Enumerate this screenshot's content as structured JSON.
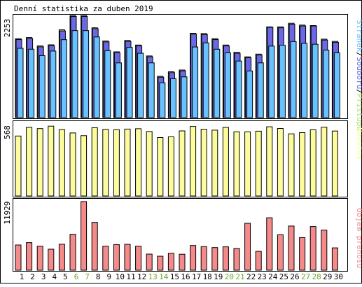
{
  "title": "Denní statistika za duben 2019",
  "colors": {
    "hits": "#b4e06c",
    "files": "#6b68e6",
    "pages": "#68c2ff",
    "visits": "#fdfc9c",
    "kbytes": "#f48a8a",
    "weekend_label": "#69a924",
    "weekday_label": "#000000"
  },
  "chart_data": [
    {
      "type": "bar",
      "title": "Denní statistika za duben 2019",
      "ylabel": "Stránek/Souborů/Přístupů",
      "ylabel_parts": [
        "Stránek",
        "/",
        "Souborů",
        "/",
        "Přístupů"
      ],
      "ymax_label": "2253",
      "ylim": [
        0,
        2253
      ],
      "grid": false,
      "categories": [
        "1",
        "2",
        "3",
        "4",
        "5",
        "6",
        "7",
        "8",
        "9",
        "10",
        "11",
        "12",
        "13",
        "14",
        "15",
        "16",
        "17",
        "18",
        "19",
        "20",
        "21",
        "22",
        "23",
        "24",
        "25",
        "26",
        "27",
        "28",
        "29",
        "30"
      ],
      "weekend": [
        6,
        7,
        13,
        14,
        20,
        21,
        27,
        28
      ],
      "series": [
        {
          "name": "Přístupů",
          "values": [
            1740,
            1765,
            1580,
            1605,
            1935,
            2250,
            2250,
            1980,
            1690,
            1450,
            1700,
            1600,
            1360,
            910,
            1010,
            1050,
            1860,
            1855,
            1740,
            1600,
            1440,
            1340,
            1400,
            2000,
            2000,
            2080,
            2040,
            2030,
            1730,
            1680
          ]
        },
        {
          "name": "Souborů",
          "values": [
            1720,
            1745,
            1560,
            1585,
            1910,
            2230,
            2230,
            1960,
            1670,
            1430,
            1680,
            1580,
            1340,
            890,
            990,
            1030,
            1840,
            1830,
            1720,
            1580,
            1420,
            1320,
            1380,
            1990,
            1980,
            2060,
            2020,
            2020,
            1710,
            1660
          ]
        },
        {
          "name": "Stránek",
          "values": [
            1620,
            1600,
            1460,
            1560,
            1810,
            2010,
            2010,
            1870,
            1570,
            1300,
            1640,
            1510,
            1300,
            860,
            950,
            990,
            1650,
            1740,
            1600,
            1520,
            1340,
            1120,
            1300,
            1670,
            1690,
            1770,
            1730,
            1710,
            1580,
            1520
          ]
        }
      ]
    },
    {
      "type": "bar",
      "ylabel": "Návštěv",
      "ymax_label": "568",
      "ylim": [
        0,
        568
      ],
      "grid": false,
      "categories": [
        "1",
        "2",
        "3",
        "4",
        "5",
        "6",
        "7",
        "8",
        "9",
        "10",
        "11",
        "12",
        "13",
        "14",
        "15",
        "16",
        "17",
        "18",
        "19",
        "20",
        "21",
        "22",
        "23",
        "24",
        "25",
        "26",
        "27",
        "28",
        "29",
        "30"
      ],
      "series": [
        {
          "name": "Návštěv",
          "values": [
            468,
            535,
            526,
            545,
            518,
            492,
            471,
            533,
            520,
            517,
            522,
            525,
            503,
            456,
            462,
            508,
            543,
            521,
            514,
            535,
            501,
            501,
            506,
            540,
            527,
            485,
            494,
            517,
            537,
            507
          ]
        }
      ]
    },
    {
      "type": "bar",
      "ylabel": "Objem přenosu",
      "ymax_label": "11929",
      "ylim": [
        0,
        11929
      ],
      "grid": false,
      "categories": [
        "1",
        "2",
        "3",
        "4",
        "5",
        "6",
        "7",
        "8",
        "9",
        "10",
        "11",
        "12",
        "13",
        "14",
        "15",
        "16",
        "17",
        "18",
        "19",
        "20",
        "21",
        "22",
        "23",
        "24",
        "25",
        "26",
        "27",
        "28",
        "29",
        "30"
      ],
      "series": [
        {
          "name": "Objem přenosu",
          "values": [
            4380,
            4800,
            4180,
            3650,
            4520,
            6240,
            11929,
            8310,
            4180,
            4460,
            4500,
            4180,
            2800,
            2440,
            2930,
            2780,
            4300,
            4100,
            3930,
            4070,
            3780,
            8150,
            3280,
            9120,
            6170,
            7680,
            5670,
            7590,
            6960,
            3880
          ]
        }
      ]
    }
  ]
}
